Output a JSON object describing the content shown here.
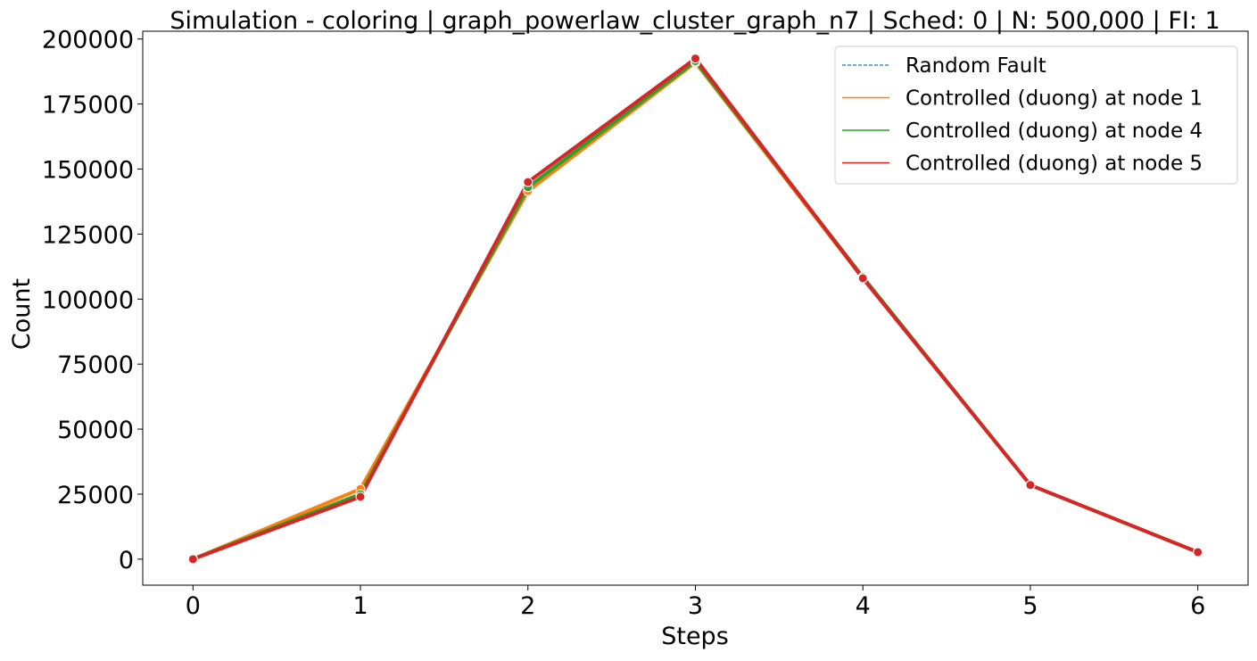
{
  "chart_data": {
    "type": "line",
    "title": "Simulation - coloring | graph_powerlaw_cluster_graph_n7 | Sched: 0 | N: 500,000 | FI: 1",
    "xlabel": "Steps",
    "ylabel": "Count",
    "x": [
      0,
      1,
      2,
      3,
      4,
      5,
      6
    ],
    "xlim": [
      -0.3,
      6.3
    ],
    "ylim": [
      -10000,
      203000
    ],
    "xticks": [
      0,
      1,
      2,
      3,
      4,
      5,
      6
    ],
    "yticks": [
      0,
      25000,
      50000,
      75000,
      100000,
      125000,
      150000,
      175000,
      200000
    ],
    "grid": false,
    "legend_position": "top-right",
    "series": [
      {
        "name": "Random Fault",
        "color": "#1f77b4",
        "dashed": true,
        "values": [
          0,
          25000,
          143000,
          191500,
          108500,
          28500,
          2700
        ]
      },
      {
        "name": "Controlled (duong) at node 1",
        "color": "#ff7f0e",
        "dashed": false,
        "values": [
          0,
          27000,
          141500,
          191000,
          108000,
          28500,
          2700
        ]
      },
      {
        "name": "Controlled (duong) at node 4",
        "color": "#2ca02c",
        "dashed": false,
        "values": [
          0,
          25000,
          143000,
          191500,
          108500,
          28500,
          2700
        ]
      },
      {
        "name": "Controlled (duong) at node 5",
        "color": "#d62728",
        "dashed": false,
        "values": [
          0,
          24000,
          145000,
          192500,
          108000,
          28500,
          2700
        ]
      }
    ]
  }
}
